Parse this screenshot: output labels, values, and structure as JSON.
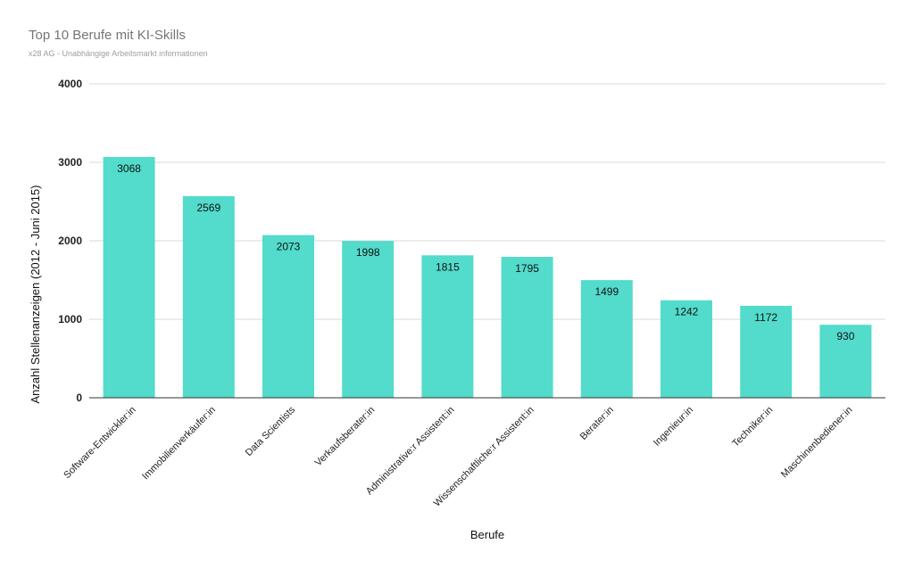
{
  "header": {
    "title": "Top 10 Berufe mit KI-Skills",
    "subtitle": "x28 AG - Unabhängige Arbeitsmarkt informationen"
  },
  "chart_data": {
    "type": "bar",
    "title": "Top 10 Berufe mit KI-Skills",
    "subtitle": "x28 AG - Unabhängige Arbeitsmarkt informationen",
    "xlabel": "Berufe",
    "ylabel": "Anzahl Stellenanzeigen (2012 - Juni 2015)",
    "ylim": [
      0,
      4000
    ],
    "yticks": [
      0,
      1000,
      2000,
      3000,
      4000
    ],
    "grid": true,
    "legend": "none",
    "bar_color": "#53dbcb",
    "categories": [
      "Software-Entwickler:in",
      "Immobilienverkäufer:in",
      "Data Scientists",
      "Verkaufsberater:in",
      "Administrative:r Assistent:in",
      "Wissenschaftliche:r Assistent:in",
      "Berater:in",
      "Ingenieur:in",
      "Techniker:in",
      "Maschinenbediener:in"
    ],
    "values": [
      3068,
      2569,
      2073,
      1998,
      1815,
      1795,
      1499,
      1242,
      1172,
      930
    ]
  }
}
